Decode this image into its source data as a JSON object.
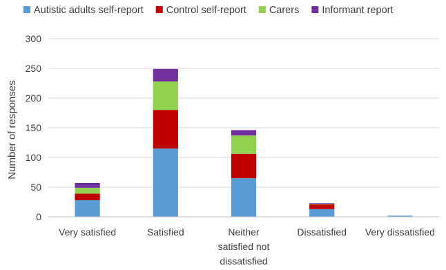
{
  "chart_data": {
    "type": "bar",
    "stacked": true,
    "title": "",
    "xlabel": "",
    "ylabel": "Number of responses",
    "ylim": [
      0,
      300
    ],
    "yticks": [
      0,
      50,
      100,
      150,
      200,
      250,
      300
    ],
    "grid": true,
    "legend_position": "top",
    "categories": [
      [
        "Very satisfied"
      ],
      [
        "Satisfied"
      ],
      [
        "Neither",
        "satisfied not",
        "dissatisfied"
      ],
      [
        "Dissatisfied"
      ],
      [
        "Very dissatisfied"
      ]
    ],
    "series": [
      {
        "name": "Autistic adults self-report",
        "color": "#5b9bd5",
        "values": [
          28,
          115,
          65,
          13,
          2
        ]
      },
      {
        "name": "Control self-report",
        "color": "#c00000",
        "values": [
          11,
          65,
          41,
          8,
          0
        ]
      },
      {
        "name": "Carers",
        "color": "#92d050",
        "values": [
          10,
          48,
          31,
          1,
          0
        ]
      },
      {
        "name": "Informant report",
        "color": "#7030a0",
        "values": [
          8,
          21,
          9,
          1,
          0
        ]
      }
    ]
  }
}
